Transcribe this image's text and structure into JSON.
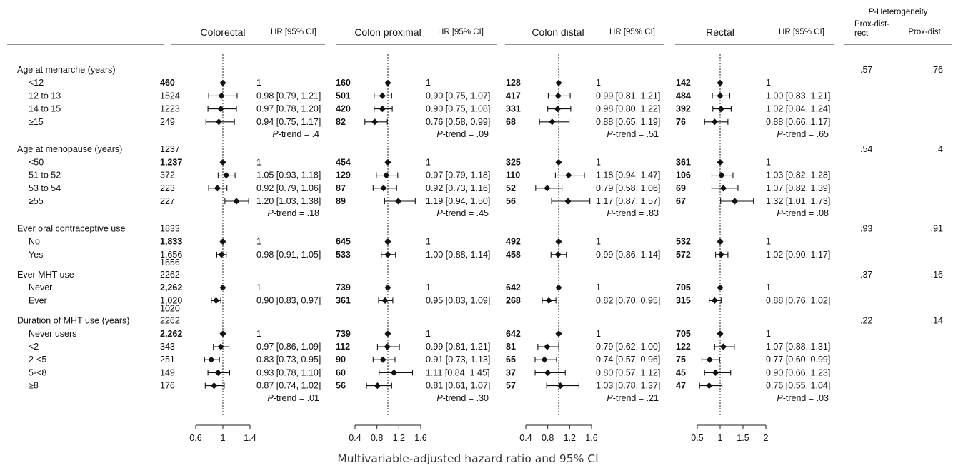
{
  "title": "",
  "x_axis_title": "Multivariable-adjusted hazard ratio and 95% CI",
  "heterogeneity": {
    "title_italic": "P",
    "title_rest": "-Heterogeneity",
    "col1_line1": "Prox-dist-",
    "col1_line2": "rect",
    "col2": "Prox-dist"
  },
  "columns": [
    {
      "name": "Colorectal",
      "hr_header": "HR [95% CI]"
    },
    {
      "name": "Colon proximal",
      "hr_header": "HR [95% CI]"
    },
    {
      "name": "Colon distal",
      "hr_header": "HR [95% CI]"
    },
    {
      "name": "Rectal",
      "hr_header": "HR [95% CI]"
    }
  ],
  "chart_data": {
    "type": "forest",
    "reference_line": 1,
    "panels": [
      {
        "name": "Colorectal",
        "axis_min": 0.6,
        "axis_max": 1.4,
        "ticks": [
          0.6,
          1,
          1.4
        ],
        "tick_labels": [
          "0.6",
          "1",
          "1.4"
        ]
      },
      {
        "name": "Colon proximal",
        "axis_min": 0.4,
        "axis_max": 1.6,
        "ticks": [
          0.4,
          0.8,
          1.2,
          1.6
        ],
        "tick_labels": [
          "0.4",
          "0.8",
          "1.2",
          "1.6"
        ]
      },
      {
        "name": "Colon distal",
        "axis_min": 0.4,
        "axis_max": 1.6,
        "ticks": [
          0.4,
          0.8,
          1.2,
          1.6
        ],
        "tick_labels": [
          "0.4",
          "0.8",
          "1.2",
          "1.6"
        ]
      },
      {
        "name": "Rectal",
        "axis_min": 0.5,
        "axis_max": 2,
        "ticks": [
          0.5,
          1,
          1.5,
          2
        ],
        "tick_labels": [
          "0.5",
          "1",
          "1.5",
          "2"
        ]
      }
    ],
    "groups": [
      {
        "label": "Age at menarche (years)",
        "header_count": "",
        "het1": ".57",
        "het2": ".76",
        "rows": [
          {
            "label": "<12",
            "cells": [
              {
                "n": "460",
                "hr": 1,
                "ref": true,
                "text": "1"
              },
              {
                "n": "160",
                "hr": 1,
                "ref": true,
                "text": "1"
              },
              {
                "n": "128",
                "hr": 1,
                "ref": true,
                "text": "1"
              },
              {
                "n": "142",
                "hr": 1,
                "ref": true,
                "text": "1"
              }
            ]
          },
          {
            "label": "12 to 13",
            "cells": [
              {
                "n": "1524",
                "hr": 0.98,
                "lo": 0.79,
                "hi": 1.21,
                "text": "0.98 [0.79, 1.21]"
              },
              {
                "n": "501",
                "hr": 0.9,
                "lo": 0.75,
                "hi": 1.07,
                "text": "0.90 [0.75, 1.07]"
              },
              {
                "n": "417",
                "hr": 0.99,
                "lo": 0.81,
                "hi": 1.21,
                "text": "0.99 [0.81, 1.21]"
              },
              {
                "n": "484",
                "hr": 1.0,
                "lo": 0.83,
                "hi": 1.21,
                "text": "1.00 [0.83, 1.21]"
              }
            ]
          },
          {
            "label": "14 to 15",
            "cells": [
              {
                "n": "1223",
                "hr": 0.97,
                "lo": 0.78,
                "hi": 1.2,
                "text": "0.97 [0.78, 1.20]"
              },
              {
                "n": "420",
                "hr": 0.9,
                "lo": 0.75,
                "hi": 1.08,
                "text": "0.90 [0.75, 1.08]"
              },
              {
                "n": "331",
                "hr": 0.98,
                "lo": 0.8,
                "hi": 1.22,
                "text": "0.98 [0.80, 1.22]"
              },
              {
                "n": "392",
                "hr": 1.02,
                "lo": 0.84,
                "hi": 1.24,
                "text": "1.02 [0.84, 1.24]"
              }
            ]
          },
          {
            "label": "≥15",
            "cells": [
              {
                "n": "249",
                "hr": 0.94,
                "lo": 0.75,
                "hi": 1.17,
                "text": "0.94 [0.75, 1.17]"
              },
              {
                "n": "82",
                "hr": 0.76,
                "lo": 0.58,
                "hi": 0.99,
                "text": "0.76 [0.58, 0.99]"
              },
              {
                "n": "68",
                "hr": 0.88,
                "lo": 0.65,
                "hi": 1.19,
                "text": "0.88 [0.65, 1.19]"
              },
              {
                "n": "76",
                "hr": 0.88,
                "lo": 0.66,
                "hi": 1.17,
                "text": "0.88 [0.66, 1.17]"
              }
            ]
          }
        ],
        "ptrend": [
          ".4",
          ".09",
          ".51",
          ".65"
        ],
        "extra_count": ""
      },
      {
        "label": "Age at menopause (years)",
        "header_count": "1237",
        "het1": ".54",
        "het2": ".4",
        "rows": [
          {
            "label": "<50",
            "cells": [
              {
                "n": "1,237",
                "hr": 1,
                "ref": true,
                "text": "1"
              },
              {
                "n": "454",
                "hr": 1,
                "ref": true,
                "text": "1"
              },
              {
                "n": "325",
                "hr": 1,
                "ref": true,
                "text": "1"
              },
              {
                "n": "361",
                "hr": 1,
                "ref": true,
                "text": "1"
              }
            ]
          },
          {
            "label": "51 to 52",
            "cells": [
              {
                "n": "372",
                "hr": 1.05,
                "lo": 0.93,
                "hi": 1.18,
                "text": "1.05 [0.93, 1.18]"
              },
              {
                "n": "129",
                "hr": 0.97,
                "lo": 0.79,
                "hi": 1.18,
                "text": "0.97 [0.79, 1.18]"
              },
              {
                "n": "110",
                "hr": 1.18,
                "lo": 0.94,
                "hi": 1.47,
                "text": "1.18 [0.94, 1.47]"
              },
              {
                "n": "106",
                "hr": 1.03,
                "lo": 0.82,
                "hi": 1.28,
                "text": "1.03 [0.82, 1.28]"
              }
            ]
          },
          {
            "label": "53 to 54",
            "cells": [
              {
                "n": "223",
                "hr": 0.92,
                "lo": 0.79,
                "hi": 1.06,
                "text": "0.92 [0.79, 1.06]"
              },
              {
                "n": "87",
                "hr": 0.92,
                "lo": 0.73,
                "hi": 1.16,
                "text": "0.92 [0.73, 1.16]"
              },
              {
                "n": "52",
                "hr": 0.79,
                "lo": 0.58,
                "hi": 1.06,
                "text": "0.79 [0.58, 1.06]"
              },
              {
                "n": "69",
                "hr": 1.07,
                "lo": 0.82,
                "hi": 1.39,
                "text": "1.07 [0.82, 1.39]"
              }
            ]
          },
          {
            "label": "≥55",
            "cells": [
              {
                "n": "227",
                "hr": 1.2,
                "lo": 1.03,
                "hi": 1.38,
                "text": "1.20 [1.03, 1.38]"
              },
              {
                "n": "89",
                "hr": 1.19,
                "lo": 0.94,
                "hi": 1.5,
                "text": "1.19 [0.94, 1.50]"
              },
              {
                "n": "56",
                "hr": 1.17,
                "lo": 0.87,
                "hi": 1.57,
                "text": "1.17 [0.87, 1.57]"
              },
              {
                "n": "67",
                "hr": 1.32,
                "lo": 1.01,
                "hi": 1.73,
                "text": "1.32 [1.01, 1.73]"
              }
            ]
          }
        ],
        "ptrend": [
          ".18",
          ".45",
          ".83",
          ".08"
        ],
        "extra_count": ""
      },
      {
        "label": "Ever oral contraceptive use",
        "header_count": "1833",
        "het1": ".93",
        "het2": ".91",
        "rows": [
          {
            "label": "No",
            "cells": [
              {
                "n": "1,833",
                "hr": 1,
                "ref": true,
                "text": "1"
              },
              {
                "n": "645",
                "hr": 1,
                "ref": true,
                "text": "1"
              },
              {
                "n": "492",
                "hr": 1,
                "ref": true,
                "text": "1"
              },
              {
                "n": "532",
                "hr": 1,
                "ref": true,
                "text": "1"
              }
            ]
          },
          {
            "label": "Yes",
            "cells": [
              {
                "n": "1,656",
                "hr": 0.98,
                "lo": 0.91,
                "hi": 1.05,
                "text": "0.98 [0.91, 1.05]"
              },
              {
                "n": "533",
                "hr": 1.0,
                "lo": 0.88,
                "hi": 1.14,
                "text": "1.00 [0.88, 1.14]"
              },
              {
                "n": "458",
                "hr": 0.99,
                "lo": 0.86,
                "hi": 1.14,
                "text": "0.99 [0.86, 1.14]"
              },
              {
                "n": "572",
                "hr": 1.02,
                "lo": 0.9,
                "hi": 1.17,
                "text": "1.02 [0.90, 1.17]"
              }
            ]
          }
        ],
        "ptrend": null,
        "extra_count": "1656"
      },
      {
        "label": "Ever MHT use",
        "header_count": "2262",
        "het1": ".37",
        "het2": ".16",
        "rows": [
          {
            "label": "Never",
            "cells": [
              {
                "n": "2,262",
                "hr": 1,
                "ref": true,
                "text": "1"
              },
              {
                "n": "739",
                "hr": 1,
                "ref": true,
                "text": "1"
              },
              {
                "n": "642",
                "hr": 1,
                "ref": true,
                "text": "1"
              },
              {
                "n": "705",
                "hr": 1,
                "ref": true,
                "text": "1"
              }
            ]
          },
          {
            "label": "Ever",
            "cells": [
              {
                "n": "1,020",
                "hr": 0.9,
                "lo": 0.83,
                "hi": 0.97,
                "text": "0.90 [0.83, 0.97]"
              },
              {
                "n": "361",
                "hr": 0.95,
                "lo": 0.83,
                "hi": 1.09,
                "text": "0.95 [0.83, 1.09]"
              },
              {
                "n": "268",
                "hr": 0.82,
                "lo": 0.7,
                "hi": 0.95,
                "text": "0.82 [0.70, 0.95]"
              },
              {
                "n": "315",
                "hr": 0.88,
                "lo": 0.76,
                "hi": 1.02,
                "text": "0.88 [0.76, 1.02]"
              }
            ]
          }
        ],
        "ptrend": null,
        "extra_count": "1020"
      },
      {
        "label": "Duration of MHT use (years)",
        "header_count": "2262",
        "het1": ".22",
        "het2": ".14",
        "rows": [
          {
            "label": "Never users",
            "cells": [
              {
                "n": "2,262",
                "hr": 1,
                "ref": true,
                "text": "1"
              },
              {
                "n": "739",
                "hr": 1,
                "ref": true,
                "text": "1"
              },
              {
                "n": "642",
                "hr": 1,
                "ref": true,
                "text": "1"
              },
              {
                "n": "705",
                "hr": 1,
                "ref": true,
                "text": "1"
              }
            ]
          },
          {
            "label": "<2",
            "cells": [
              {
                "n": "343",
                "hr": 0.97,
                "lo": 0.86,
                "hi": 1.09,
                "text": "0.97 [0.86, 1.09]"
              },
              {
                "n": "112",
                "hr": 0.99,
                "lo": 0.81,
                "hi": 1.21,
                "text": "0.99 [0.81, 1.21]"
              },
              {
                "n": "81",
                "hr": 0.79,
                "lo": 0.62,
                "hi": 1.0,
                "text": "0.79 [0.62, 1.00]"
              },
              {
                "n": "122",
                "hr": 1.07,
                "lo": 0.88,
                "hi": 1.31,
                "text": "1.07 [0.88, 1.31]"
              }
            ]
          },
          {
            "label": "2-<5",
            "cells": [
              {
                "n": "251",
                "hr": 0.83,
                "lo": 0.73,
                "hi": 0.95,
                "text": "0.83 [0.73, 0.95]"
              },
              {
                "n": "90",
                "hr": 0.91,
                "lo": 0.73,
                "hi": 1.13,
                "text": "0.91 [0.73, 1.13]"
              },
              {
                "n": "65",
                "hr": 0.74,
                "lo": 0.57,
                "hi": 0.96,
                "text": "0.74 [0.57, 0.96]"
              },
              {
                "n": "75",
                "hr": 0.77,
                "lo": 0.6,
                "hi": 0.99,
                "text": "0.77 [0.60, 0.99]"
              }
            ]
          },
          {
            "label": "5-<8",
            "cells": [
              {
                "n": "149",
                "hr": 0.93,
                "lo": 0.78,
                "hi": 1.1,
                "text": "0.93 [0.78, 1.10]"
              },
              {
                "n": "60",
                "hr": 1.11,
                "lo": 0.84,
                "hi": 1.45,
                "text": "1.11 [0.84, 1.45]"
              },
              {
                "n": "37",
                "hr": 0.8,
                "lo": 0.57,
                "hi": 1.12,
                "text": "0.80 [0.57, 1.12]"
              },
              {
                "n": "45",
                "hr": 0.9,
                "lo": 0.66,
                "hi": 1.23,
                "text": "0.90 [0.66, 1.23]"
              }
            ]
          },
          {
            "label": "≥8",
            "cells": [
              {
                "n": "176",
                "hr": 0.87,
                "lo": 0.74,
                "hi": 1.02,
                "text": "0.87 [0.74, 1.02]"
              },
              {
                "n": "56",
                "hr": 0.81,
                "lo": 0.61,
                "hi": 1.07,
                "text": "0.81 [0.61, 1.07]"
              },
              {
                "n": "57",
                "hr": 1.03,
                "lo": 0.78,
                "hi": 1.37,
                "text": "1.03 [0.78, 1.37]"
              },
              {
                "n": "47",
                "hr": 0.76,
                "lo": 0.55,
                "hi": 1.04,
                "text": "0.76 [0.55, 1.04]"
              }
            ]
          }
        ],
        "ptrend": [
          ".01",
          ".30",
          ".21",
          ".03"
        ],
        "extra_count": ""
      }
    ]
  }
}
